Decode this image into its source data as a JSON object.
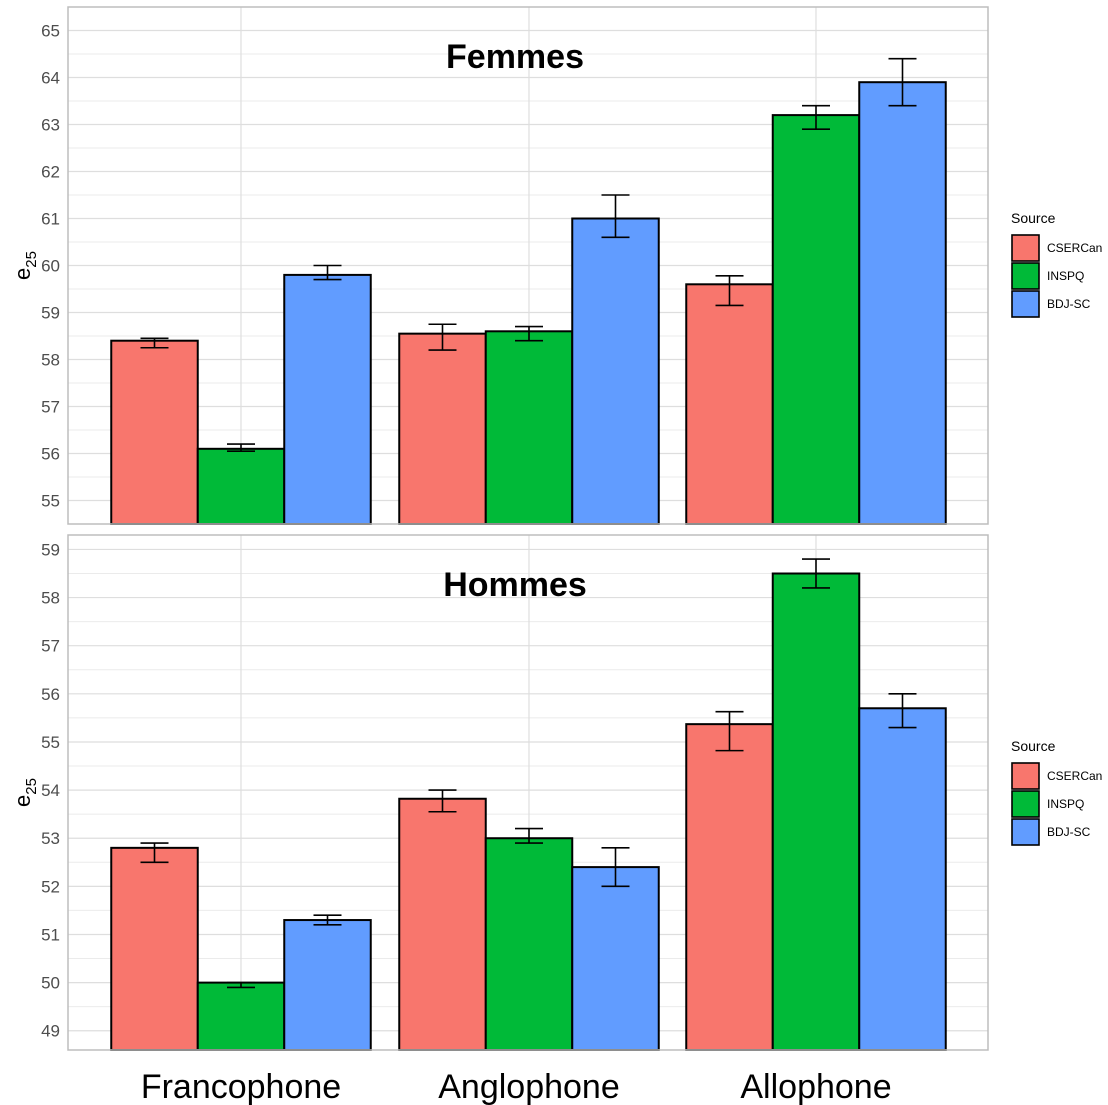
{
  "chart_data": {
    "type": "bar",
    "categories": [
      "Francophone",
      "Anglophone",
      "Allophone"
    ],
    "legend": {
      "title": "Source",
      "placement": "right"
    },
    "series_colors": {
      "CSERCan": "#F8766D",
      "INSPQ": "#00BA38",
      "BDJ-SC": "#619CFF"
    },
    "grid": true,
    "panels": [
      {
        "title": "Femmes",
        "ylabel_base": "e",
        "ylabel_sub": "25",
        "ylim": [
          54.5,
          65.5
        ],
        "yticks": [
          55,
          56,
          57,
          58,
          59,
          60,
          61,
          62,
          63,
          64,
          65
        ],
        "series": [
          {
            "name": "CSERCan",
            "values": [
              58.4,
              58.55,
              59.6
            ],
            "err_low": [
              58.25,
              58.2,
              59.15
            ],
            "err_high": [
              58.45,
              58.75,
              59.78
            ]
          },
          {
            "name": "INSPQ",
            "values": [
              56.1,
              58.6,
              63.2
            ],
            "err_low": [
              56.05,
              58.4,
              62.9
            ],
            "err_high": [
              56.2,
              58.7,
              63.4
            ]
          },
          {
            "name": "BDJ-SC",
            "values": [
              59.8,
              61.0,
              63.9
            ],
            "err_low": [
              59.7,
              60.6,
              63.4
            ],
            "err_high": [
              60.0,
              61.5,
              64.4
            ]
          }
        ]
      },
      {
        "title": "Hommes",
        "ylabel_base": "e",
        "ylabel_sub": "25",
        "ylim": [
          48.6,
          59.3
        ],
        "yticks": [
          49,
          50,
          51,
          52,
          53,
          54,
          55,
          56,
          57,
          58,
          59
        ],
        "series": [
          {
            "name": "CSERCan",
            "values": [
              52.8,
              53.82,
              55.37
            ],
            "err_low": [
              52.5,
              53.55,
              54.82
            ],
            "err_high": [
              52.9,
              54.0,
              55.63
            ]
          },
          {
            "name": "INSPQ",
            "values": [
              50.0,
              53.0,
              58.5
            ],
            "err_low": [
              49.9,
              52.9,
              58.2
            ],
            "err_high": [
              50.0,
              53.2,
              58.8
            ]
          },
          {
            "name": "BDJ-SC",
            "values": [
              51.3,
              52.4,
              55.7
            ],
            "err_low": [
              51.2,
              52.0,
              55.3
            ],
            "err_high": [
              51.4,
              52.8,
              56.0
            ]
          }
        ]
      }
    ]
  }
}
